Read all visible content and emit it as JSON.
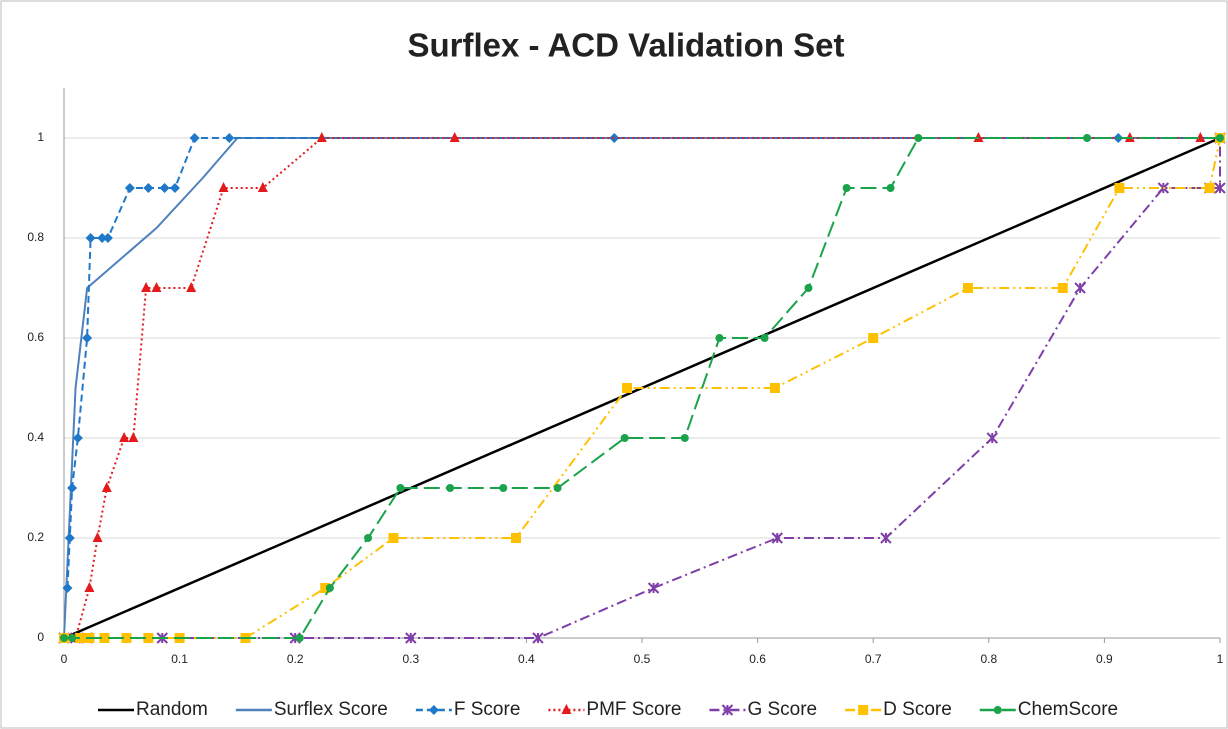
{
  "chart_data": {
    "type": "line",
    "title": "Surflex - ACD Validation Set",
    "xlim": [
      0,
      1
    ],
    "xticks": [
      0,
      0.1,
      0.2,
      0.3,
      0.4,
      0.5,
      0.6,
      0.7,
      0.8,
      0.9,
      1
    ],
    "ylim": [
      0,
      1.1
    ],
    "yticks": [
      0,
      0.2,
      0.4,
      0.6,
      0.8,
      1
    ],
    "grid": true,
    "legend": "bottom",
    "series": [
      {
        "name": "Random",
        "color": "#000000",
        "style": "solid",
        "marker": "none",
        "x": [
          0,
          1
        ],
        "values": [
          0,
          1
        ]
      },
      {
        "name": "Surflex Score",
        "color": "#4f81bd",
        "style": "solid",
        "marker": "none",
        "x": [
          0,
          0.01,
          0.02,
          0.05,
          0.08,
          0.12,
          0.15,
          1
        ],
        "values": [
          0,
          0.5,
          0.7,
          0.76,
          0.82,
          0.92,
          1,
          1
        ]
      },
      {
        "name": "F Score",
        "color": "#1f78c8",
        "style": "dashed",
        "marker": "diamond",
        "x": [
          0.003,
          0.005,
          0.007,
          0.012,
          0.02,
          0.023,
          0.033,
          0.038,
          0.057,
          0.073,
          0.087,
          0.096,
          0.113,
          0.143,
          0.476,
          0.912,
          1
        ],
        "values": [
          0.1,
          0.2,
          0.3,
          0.4,
          0.6,
          0.8,
          0.8,
          0.8,
          0.9,
          0.9,
          0.9,
          0.9,
          1,
          1,
          1,
          1,
          1
        ]
      },
      {
        "name": "PMF Score",
        "color": "#e41a1c",
        "style": "dotted",
        "marker": "triangle",
        "x": [
          0,
          0.01,
          0.022,
          0.029,
          0.037,
          0.052,
          0.06,
          0.071,
          0.08,
          0.11,
          0.138,
          0.172,
          0.223,
          0.338,
          0.791,
          0.922,
          0.983
        ],
        "values": [
          0,
          0,
          0.1,
          0.2,
          0.3,
          0.4,
          0.4,
          0.7,
          0.7,
          0.7,
          0.9,
          0.9,
          1,
          1,
          1,
          1,
          1
        ]
      },
      {
        "name": "G Score",
        "color": "#7e3fa8",
        "style": "dashdot",
        "marker": "x",
        "x": [
          0,
          0.01,
          0.02,
          0.085,
          0.2,
          0.3,
          0.41,
          0.51,
          0.617,
          0.711,
          0.803,
          0.879,
          0.951,
          0.991,
          1,
          1
        ],
        "values": [
          0,
          0,
          0,
          0,
          0,
          0,
          0,
          0.1,
          0.2,
          0.2,
          0.4,
          0.7,
          0.9,
          0.9,
          0.9,
          1
        ]
      },
      {
        "name": "D Score",
        "color": "#ffc000",
        "style": "dashdotdot",
        "marker": "square",
        "x": [
          0,
          0.014,
          0.022,
          0.035,
          0.054,
          0.073,
          0.1,
          0.157,
          0.226,
          0.285,
          0.391,
          0.487,
          0.615,
          0.7,
          0.782,
          0.864,
          0.913,
          0.991,
          1
        ],
        "values": [
          0,
          0,
          0,
          0,
          0,
          0,
          0,
          0,
          0.1,
          0.2,
          0.2,
          0.5,
          0.5,
          0.6,
          0.7,
          0.7,
          0.9,
          0.9,
          1
        ]
      },
      {
        "name": "ChemScore",
        "color": "#1aa34a",
        "style": "longdash",
        "marker": "circle",
        "x": [
          0,
          0.007,
          0.204,
          0.23,
          0.263,
          0.291,
          0.334,
          0.38,
          0.427,
          0.485,
          0.537,
          0.567,
          0.606,
          0.644,
          0.677,
          0.715,
          0.739,
          0.885,
          1
        ],
        "values": [
          0,
          0,
          0,
          0.1,
          0.2,
          0.3,
          0.3,
          0.3,
          0.3,
          0.4,
          0.4,
          0.6,
          0.6,
          0.7,
          0.9,
          0.9,
          1,
          1,
          1
        ]
      }
    ]
  }
}
